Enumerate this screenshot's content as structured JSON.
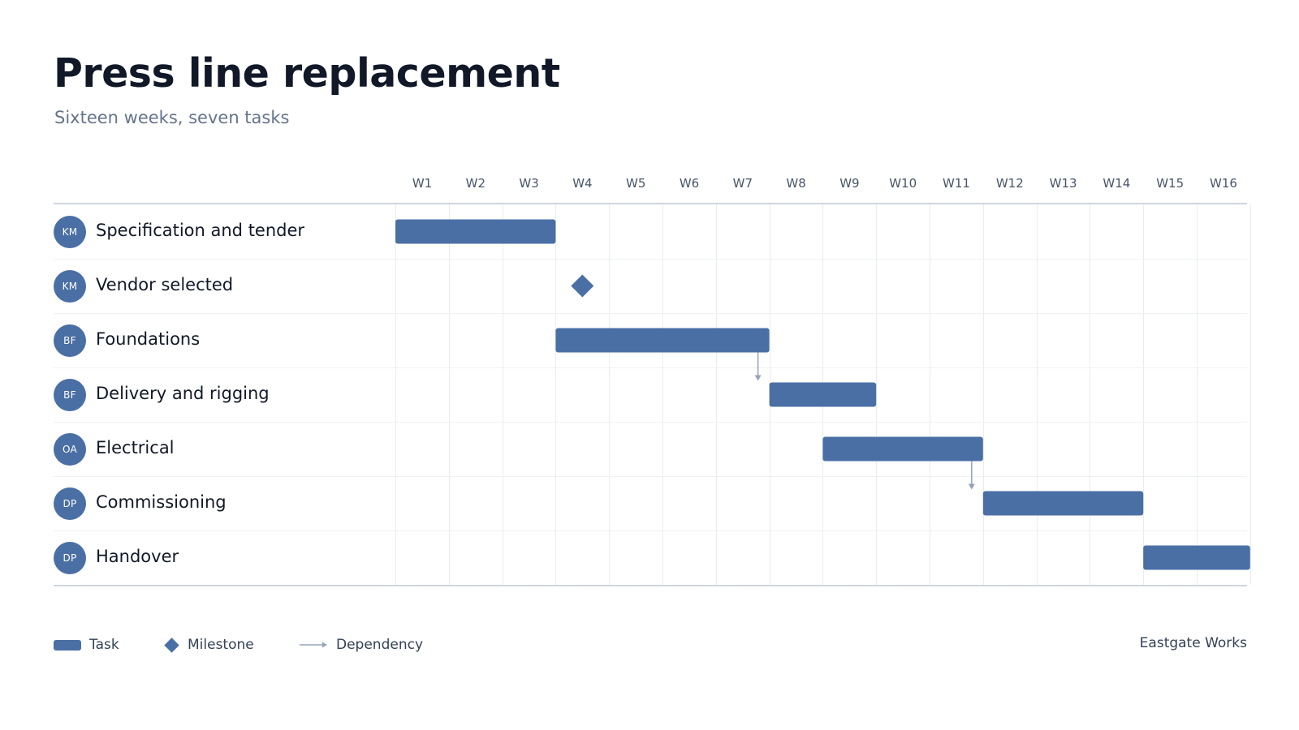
{
  "header": {
    "title": "Press line replacement",
    "subtitle": "Sixteen weeks, seven tasks"
  },
  "chart_data": {
    "type": "gantt",
    "weeks": [
      "W1",
      "W2",
      "W3",
      "W4",
      "W5",
      "W6",
      "W7",
      "W8",
      "W9",
      "W10",
      "W11",
      "W12",
      "W13",
      "W14",
      "W15",
      "W16"
    ],
    "tasks": [
      {
        "name": "Specification and tender",
        "owner": "KM",
        "type": "task",
        "start_week": 1,
        "end_week": 3
      },
      {
        "name": "Vendor selected",
        "owner": "KM",
        "type": "milestone",
        "week": 4
      },
      {
        "name": "Foundations",
        "owner": "BF",
        "type": "task",
        "start_week": 4,
        "end_week": 7
      },
      {
        "name": "Delivery and rigging",
        "owner": "BF",
        "type": "task",
        "start_week": 8,
        "end_week": 9
      },
      {
        "name": "Electrical",
        "owner": "OA",
        "type": "task",
        "start_week": 9,
        "end_week": 11
      },
      {
        "name": "Commissioning",
        "owner": "DP",
        "type": "task",
        "start_week": 12,
        "end_week": 14
      },
      {
        "name": "Handover",
        "owner": "DP",
        "type": "task",
        "start_week": 15,
        "end_week": 16
      }
    ],
    "dependencies": [
      {
        "from": "Foundations",
        "to": "Delivery and rigging"
      },
      {
        "from": "Electrical",
        "to": "Commissioning"
      }
    ],
    "colors": {
      "bar": "#4a6fa5",
      "dependency": "#94a3b8",
      "grid": "#e8ecf1"
    }
  },
  "legend": {
    "task": "Task",
    "milestone": "Milestone",
    "dependency": "Dependency"
  },
  "footer": {
    "organization": "Eastgate Works"
  }
}
